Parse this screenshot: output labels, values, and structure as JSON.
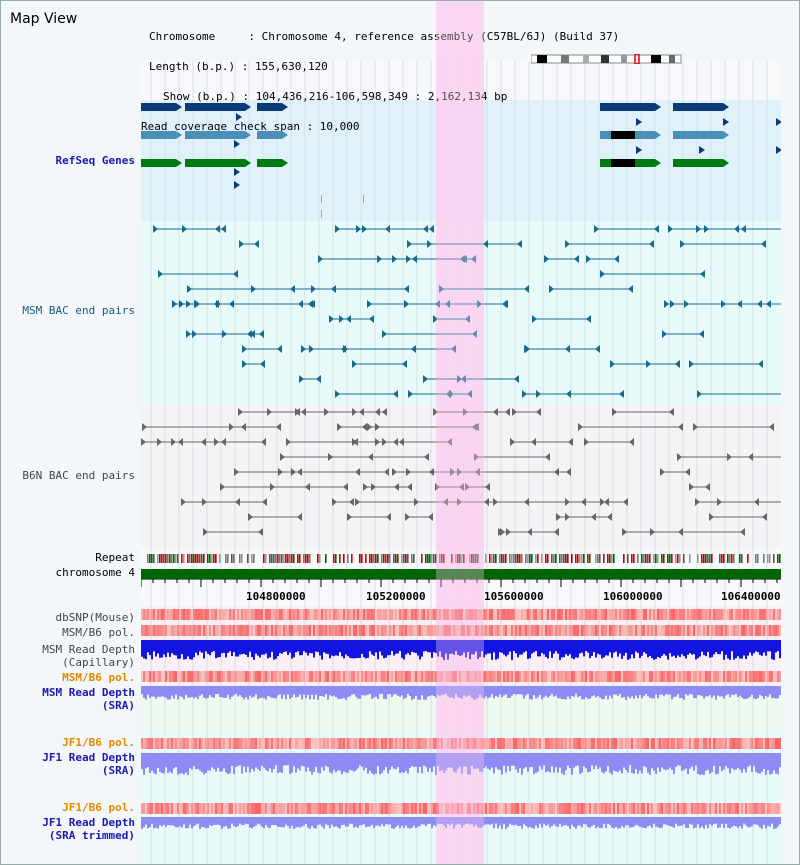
{
  "title": "Map View",
  "info": {
    "line1": "Chromosome     : Chromosome 4, reference assembly (C57BL/6J) (Build 37)",
    "line2": "Length (b.p.) : 155,630,120",
    "line3": "Show (b.p.) : 104,436,216-106,598,349 : 2,162,134 bp",
    "line4": "Read coverage check span : 10,000"
  },
  "tracks": {
    "refseq": "RefSeq Genes",
    "msm_bac": "MSM BAC end pairs",
    "b6n_bac": "B6N BAC end pairs",
    "repeat": "Repeat",
    "chromosome": "chromosome 4",
    "dbsnp": "dbSNP(Mouse)",
    "msm_b6_pol_1": "MSM/B6 pol.",
    "msm_depth_cap_1": "MSM Read Depth",
    "msm_depth_cap_2": "(Capillary)",
    "msm_b6_pol_2": "MSM/B6 pol.",
    "msm_depth_sra_1": "MSM Read Depth",
    "msm_depth_sra_2": "(SRA)",
    "jf1_b6_pol_1": "JF1/B6 pol.",
    "jf1_depth_sra_1": "JF1 Read Depth",
    "jf1_depth_sra_2": "(SRA)",
    "jf1_b6_pol_2": "JF1/B6 pol.",
    "jf1_depth_trim_1": "JF1 Read Depth",
    "jf1_depth_trim_2": "(SRA trimmed)"
  },
  "axis_ticks": [
    "104800000",
    "105200000",
    "105600000",
    "106000000",
    "106400000"
  ],
  "colors": {
    "refseq_bg": "#dff1fb",
    "bac_bg": "#e8fbfb",
    "highlight": "#fbd9f2",
    "gene_dark": "#0a3a78",
    "gene_mid": "#4a8fb8",
    "gene_green": "#007a10",
    "bac_line": "#1a6a90",
    "b6n_line": "#666666",
    "chromosome_bar": "#006400",
    "depth_blue": "#1414e0",
    "depth_light": "#8c8cf4",
    "pol_red": "#f05050"
  }
}
